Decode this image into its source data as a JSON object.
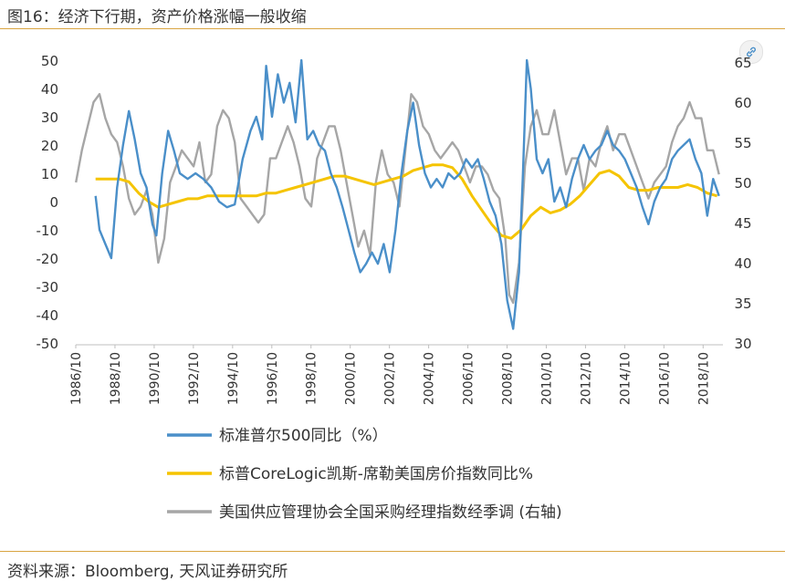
{
  "header": {
    "title": "图16：经济下行期，资产价格涨幅一般收缩"
  },
  "footer": {
    "source": "资料来源：Bloomberg, 天风证券研究所"
  },
  "icons": {
    "share": "link-icon"
  },
  "chart_data": {
    "type": "line",
    "left_axis": {
      "ticks": [
        50,
        40,
        30,
        20,
        10,
        0,
        -10,
        -20,
        -30,
        -40,
        -50
      ],
      "range": [
        -50,
        50
      ]
    },
    "right_axis": {
      "ticks": [
        65,
        60,
        55,
        50,
        45,
        40,
        35,
        30
      ],
      "range": [
        30,
        65
      ]
    },
    "x_ticks": [
      "1986/10",
      "1988/10",
      "1990/10",
      "1992/10",
      "1994/10",
      "1996/10",
      "1998/10",
      "2000/10",
      "2002/10",
      "2004/10",
      "2006/10",
      "2008/10",
      "2010/10",
      "2012/10",
      "2014/10",
      "2016/10",
      "2018/10"
    ],
    "x_range": [
      1986.79,
      2019.8
    ],
    "grid": false,
    "legend_position": "bottom",
    "series": [
      {
        "name": "标准普尔500同比（%）",
        "axis": "left",
        "color": "#4a8fc9",
        "x": [
          1987.8,
          1988.0,
          1988.3,
          1988.6,
          1988.9,
          1989.2,
          1989.5,
          1989.8,
          1990.1,
          1990.4,
          1990.7,
          1990.9,
          1991.2,
          1991.5,
          1991.8,
          1992.1,
          1992.5,
          1992.9,
          1993.3,
          1993.7,
          1994.1,
          1994.5,
          1994.9,
          1995.3,
          1995.7,
          1996.0,
          1996.3,
          1996.5,
          1996.8,
          1997.1,
          1997.4,
          1997.7,
          1998.0,
          1998.3,
          1998.6,
          1998.9,
          1999.2,
          1999.5,
          1999.8,
          2000.1,
          2000.4,
          2000.7,
          2001.0,
          2001.3,
          2001.6,
          2001.9,
          2002.2,
          2002.5,
          2002.8,
          2003.1,
          2003.4,
          2003.7,
          2004.0,
          2004.3,
          2004.6,
          2004.9,
          2005.2,
          2005.5,
          2005.8,
          2006.1,
          2006.4,
          2006.7,
          2007.0,
          2007.3,
          2007.6,
          2007.9,
          2008.2,
          2008.5,
          2008.8,
          2009.1,
          2009.4,
          2009.6,
          2009.8,
          2010.0,
          2010.3,
          2010.6,
          2010.9,
          2011.2,
          2011.5,
          2011.8,
          2012.1,
          2012.4,
          2012.7,
          2013.0,
          2013.3,
          2013.6,
          2013.9,
          2014.2,
          2014.5,
          2014.8,
          2015.1,
          2015.4,
          2015.7,
          2016.0,
          2016.3,
          2016.6,
          2016.9,
          2017.2,
          2017.5,
          2017.8,
          2018.1,
          2018.4,
          2018.7,
          2019.0,
          2019.3,
          2019.6
        ],
        "values": [
          2,
          -10,
          -15,
          -20,
          5,
          20,
          32,
          22,
          10,
          5,
          -8,
          -12,
          10,
          25,
          18,
          10,
          8,
          10,
          8,
          5,
          0,
          -2,
          -1,
          15,
          25,
          30,
          22,
          48,
          30,
          45,
          35,
          42,
          28,
          50,
          22,
          25,
          20,
          18,
          10,
          5,
          -2,
          -10,
          -18,
          -25,
          -22,
          -18,
          -22,
          -15,
          -25,
          -10,
          10,
          25,
          35,
          20,
          10,
          5,
          8,
          5,
          10,
          8,
          10,
          15,
          12,
          15,
          8,
          0,
          -5,
          -15,
          -35,
          -45,
          -25,
          10,
          50,
          40,
          15,
          10,
          15,
          0,
          5,
          -2,
          8,
          15,
          20,
          15,
          18,
          20,
          25,
          20,
          18,
          15,
          10,
          5,
          -2,
          -8,
          0,
          5,
          8,
          15,
          18,
          20,
          22,
          15,
          10,
          -5,
          8,
          2
        ]
      },
      {
        "name": "标普CoreLogic凯斯-席勒美国房价指数同比%",
        "axis": "left",
        "color": "#f5c400",
        "x": [
          1987.8,
          1988.5,
          1989.0,
          1989.5,
          1990.0,
          1990.5,
          1991.0,
          1991.5,
          1992.0,
          1992.5,
          1993.0,
          1993.5,
          1994.0,
          1994.5,
          1995.0,
          1995.5,
          1996.0,
          1996.5,
          1997.0,
          1997.5,
          1998.0,
          1998.5,
          1999.0,
          1999.5,
          2000.0,
          2000.5,
          2001.0,
          2001.5,
          2002.0,
          2002.5,
          2003.0,
          2003.5,
          2004.0,
          2004.5,
          2005.0,
          2005.5,
          2006.0,
          2006.5,
          2007.0,
          2007.5,
          2008.0,
          2008.5,
          2009.0,
          2009.5,
          2010.0,
          2010.5,
          2011.0,
          2011.5,
          2012.0,
          2012.5,
          2013.0,
          2013.5,
          2014.0,
          2014.5,
          2015.0,
          2015.5,
          2016.0,
          2016.5,
          2017.0,
          2017.5,
          2018.0,
          2018.5,
          2019.0,
          2019.5
        ],
        "values": [
          8,
          8,
          8,
          7,
          3,
          0,
          -2,
          -1,
          0,
          1,
          1,
          2,
          2,
          2,
          2,
          2,
          2,
          3,
          3,
          4,
          5,
          6,
          7,
          8,
          9,
          9,
          8,
          7,
          6,
          7,
          8,
          9,
          11,
          12,
          13,
          13,
          12,
          8,
          2,
          -3,
          -8,
          -12,
          -13,
          -10,
          -5,
          -2,
          -4,
          -3,
          -1,
          2,
          6,
          10,
          11,
          9,
          5,
          4,
          4,
          5,
          5,
          5,
          6,
          5,
          3,
          2
        ]
      },
      {
        "name": "美国供应管理协会全国采购经理指数经季调 (右轴)",
        "axis": "right",
        "color": "#a6a6a6",
        "x": [
          1986.8,
          1987.1,
          1987.4,
          1987.7,
          1988.0,
          1988.3,
          1988.6,
          1988.9,
          1989.2,
          1989.5,
          1989.8,
          1990.1,
          1990.4,
          1990.7,
          1991.0,
          1991.3,
          1991.6,
          1991.9,
          1992.2,
          1992.5,
          1992.8,
          1993.1,
          1993.4,
          1993.7,
          1994.0,
          1994.3,
          1994.6,
          1994.9,
          1995.2,
          1995.5,
          1995.8,
          1996.1,
          1996.4,
          1996.7,
          1997.0,
          1997.3,
          1997.6,
          1997.9,
          1998.2,
          1998.5,
          1998.8,
          1999.1,
          1999.4,
          1999.7,
          2000.0,
          2000.3,
          2000.6,
          2000.9,
          2001.2,
          2001.5,
          2001.8,
          2002.1,
          2002.4,
          2002.7,
          2003.0,
          2003.3,
          2003.6,
          2003.9,
          2004.2,
          2004.5,
          2004.8,
          2005.1,
          2005.4,
          2005.7,
          2006.0,
          2006.3,
          2006.6,
          2006.9,
          2007.2,
          2007.5,
          2007.8,
          2008.1,
          2008.4,
          2008.7,
          2008.9,
          2009.1,
          2009.4,
          2009.7,
          2010.0,
          2010.3,
          2010.6,
          2010.9,
          2011.2,
          2011.5,
          2011.8,
          2012.1,
          2012.4,
          2012.7,
          2013.0,
          2013.3,
          2013.6,
          2013.9,
          2014.2,
          2014.5,
          2014.8,
          2015.1,
          2015.4,
          2015.7,
          2016.0,
          2016.3,
          2016.6,
          2016.9,
          2017.2,
          2017.5,
          2017.8,
          2018.1,
          2018.4,
          2018.7,
          2019.0,
          2019.3,
          2019.6
        ],
        "values": [
          50,
          54,
          57,
          60,
          61,
          58,
          56,
          55,
          52,
          48,
          46,
          47,
          49,
          46,
          40,
          43,
          50,
          52,
          54,
          53,
          52,
          55,
          50,
          51,
          57,
          59,
          58,
          55,
          48,
          47,
          46,
          45,
          46,
          53,
          53,
          55,
          57,
          55,
          52,
          48,
          47,
          53,
          55,
          57,
          57,
          54,
          50,
          46,
          42,
          44,
          41,
          50,
          54,
          51,
          50,
          47,
          54,
          61,
          60,
          57,
          56,
          54,
          53,
          54,
          55,
          54,
          52,
          50,
          52,
          52,
          51,
          49,
          48,
          43,
          36,
          35,
          40,
          52,
          57,
          59,
          56,
          56,
          59,
          55,
          51,
          53,
          53,
          49,
          53,
          52,
          55,
          57,
          54,
          56,
          56,
          54,
          52,
          50,
          48,
          50,
          51,
          52,
          55,
          57,
          58,
          60,
          58,
          58,
          54,
          54,
          51
        ]
      }
    ]
  }
}
